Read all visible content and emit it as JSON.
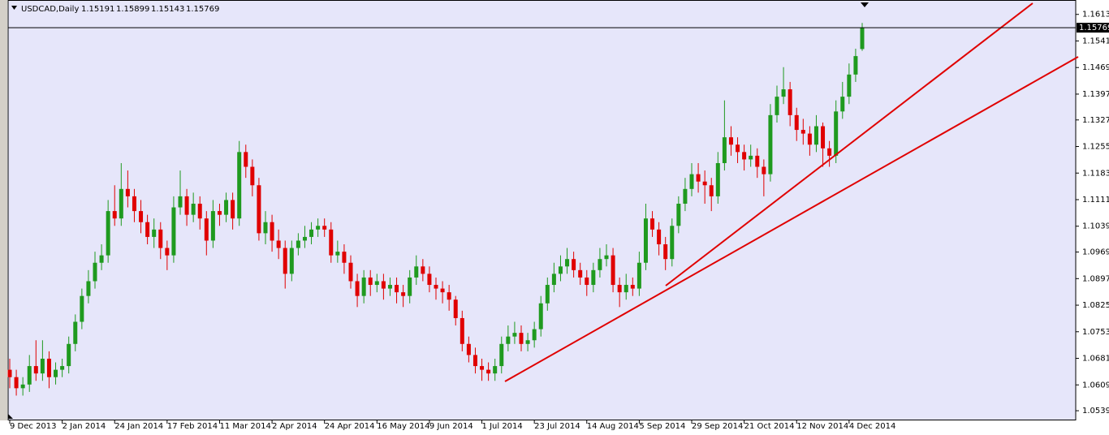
{
  "chart_data": {
    "type": "candlestick",
    "title": "USDCAD,Daily",
    "up_color": "#1f9a1f",
    "down_color": "#e00000",
    "ylim": [
      1.0526,
      1.1652
    ],
    "yticks": [
      {
        "value": 1.1613,
        "label": "1.16130"
      },
      {
        "value": 1.1541,
        "label": "1.15410"
      },
      {
        "value": 1.1469,
        "label": "1.14690"
      },
      {
        "value": 1.1397,
        "label": "1.13970"
      },
      {
        "value": 1.1327,
        "label": "1.13270"
      },
      {
        "value": 1.1255,
        "label": "1.12550"
      },
      {
        "value": 1.1183,
        "label": "1.11830"
      },
      {
        "value": 1.1111,
        "label": "1.11110"
      },
      {
        "value": 1.1039,
        "label": "1.10390"
      },
      {
        "value": 1.0969,
        "label": "1.09690"
      },
      {
        "value": 1.0897,
        "label": "1.08970"
      },
      {
        "value": 1.0825,
        "label": "1.08250"
      },
      {
        "value": 1.0753,
        "label": "1.07530"
      },
      {
        "value": 1.0681,
        "label": "1.06810"
      },
      {
        "value": 1.0609,
        "label": "1.06090"
      },
      {
        "value": 1.0539,
        "label": "1.05390"
      }
    ],
    "categories": [
      "9 Dec 2013",
      null,
      null,
      null,
      null,
      null,
      null,
      null,
      "2 Jan 2014",
      null,
      null,
      null,
      null,
      null,
      null,
      null,
      "24 Jan 2014",
      null,
      null,
      null,
      null,
      null,
      null,
      null,
      "17 Feb 2014",
      null,
      null,
      null,
      null,
      null,
      null,
      null,
      "11 Mar 2014",
      null,
      null,
      null,
      null,
      null,
      null,
      null,
      "2 Apr 2014",
      null,
      null,
      null,
      null,
      null,
      null,
      null,
      "24 Apr 2014",
      null,
      null,
      null,
      null,
      null,
      null,
      null,
      "16 May 2014",
      null,
      null,
      null,
      null,
      null,
      null,
      null,
      "9 Jun 2014",
      null,
      null,
      null,
      null,
      null,
      null,
      null,
      "1 Jul 2014",
      null,
      null,
      null,
      null,
      null,
      null,
      null,
      "23 Jul 2014",
      null,
      null,
      null,
      null,
      null,
      null,
      null,
      "14 Aug 2014",
      null,
      null,
      null,
      null,
      null,
      null,
      null,
      "5 Sep 2014",
      null,
      null,
      null,
      null,
      null,
      null,
      null,
      "29 Sep 2014",
      null,
      null,
      null,
      null,
      null,
      null,
      null,
      "21 Oct 2014",
      null,
      null,
      null,
      null,
      null,
      null,
      null,
      "12 Nov 2014",
      null,
      null,
      null,
      null,
      null,
      null,
      null,
      "4 Dec 2014",
      null,
      null
    ],
    "ohlc": [
      [
        1.065,
        1.068,
        1.06,
        1.063
      ],
      [
        1.063,
        1.065,
        1.058,
        1.06
      ],
      [
        1.06,
        1.063,
        1.058,
        1.061
      ],
      [
        1.061,
        1.069,
        1.059,
        1.066
      ],
      [
        1.066,
        1.073,
        1.062,
        1.064
      ],
      [
        1.064,
        1.073,
        1.062,
        1.068
      ],
      [
        1.068,
        1.07,
        1.06,
        1.063
      ],
      [
        1.063,
        1.067,
        1.061,
        1.065
      ],
      [
        1.065,
        1.068,
        1.063,
        1.066
      ],
      [
        1.066,
        1.074,
        1.064,
        1.072
      ],
      [
        1.072,
        1.08,
        1.07,
        1.078
      ],
      [
        1.078,
        1.087,
        1.076,
        1.085
      ],
      [
        1.085,
        1.092,
        1.083,
        1.089
      ],
      [
        1.089,
        1.097,
        1.087,
        1.094
      ],
      [
        1.094,
        1.099,
        1.092,
        1.096
      ],
      [
        1.096,
        1.111,
        1.094,
        1.108
      ],
      [
        1.108,
        1.115,
        1.104,
        1.106
      ],
      [
        1.106,
        1.121,
        1.104,
        1.114
      ],
      [
        1.114,
        1.119,
        1.109,
        1.112
      ],
      [
        1.112,
        1.114,
        1.105,
        1.108
      ],
      [
        1.108,
        1.111,
        1.102,
        1.105
      ],
      [
        1.105,
        1.107,
        1.099,
        1.101
      ],
      [
        1.101,
        1.106,
        1.098,
        1.103
      ],
      [
        1.103,
        1.105,
        1.095,
        1.098
      ],
      [
        1.098,
        1.1,
        1.092,
        1.096
      ],
      [
        1.096,
        1.112,
        1.094,
        1.109
      ],
      [
        1.109,
        1.119,
        1.107,
        1.112
      ],
      [
        1.112,
        1.114,
        1.104,
        1.107
      ],
      [
        1.107,
        1.113,
        1.105,
        1.11
      ],
      [
        1.11,
        1.112,
        1.103,
        1.106
      ],
      [
        1.106,
        1.108,
        1.096,
        1.1
      ],
      [
        1.1,
        1.111,
        1.098,
        1.108
      ],
      [
        1.108,
        1.11,
        1.104,
        1.107
      ],
      [
        1.107,
        1.113,
        1.105,
        1.111
      ],
      [
        1.111,
        1.113,
        1.103,
        1.106
      ],
      [
        1.106,
        1.127,
        1.104,
        1.124
      ],
      [
        1.124,
        1.126,
        1.117,
        1.12
      ],
      [
        1.12,
        1.122,
        1.112,
        1.115
      ],
      [
        1.115,
        1.117,
        1.1,
        1.102
      ],
      [
        1.102,
        1.108,
        1.099,
        1.105
      ],
      [
        1.105,
        1.107,
        1.097,
        1.1
      ],
      [
        1.1,
        1.103,
        1.095,
        1.098
      ],
      [
        1.098,
        1.1,
        1.087,
        1.091
      ],
      [
        1.091,
        1.1,
        1.089,
        1.098
      ],
      [
        1.098,
        1.102,
        1.096,
        1.1
      ],
      [
        1.1,
        1.104,
        1.098,
        1.101
      ],
      [
        1.101,
        1.105,
        1.099,
        1.103
      ],
      [
        1.103,
        1.106,
        1.101,
        1.104
      ],
      [
        1.104,
        1.106,
        1.101,
        1.103
      ],
      [
        1.103,
        1.105,
        1.094,
        1.096
      ],
      [
        1.096,
        1.1,
        1.094,
        1.097
      ],
      [
        1.097,
        1.099,
        1.091,
        1.094
      ],
      [
        1.094,
        1.096,
        1.087,
        1.089
      ],
      [
        1.089,
        1.091,
        1.082,
        1.085
      ],
      [
        1.085,
        1.092,
        1.083,
        1.09
      ],
      [
        1.09,
        1.092,
        1.085,
        1.088
      ],
      [
        1.088,
        1.091,
        1.086,
        1.089
      ],
      [
        1.089,
        1.091,
        1.084,
        1.087
      ],
      [
        1.087,
        1.09,
        1.085,
        1.088
      ],
      [
        1.088,
        1.09,
        1.083,
        1.086
      ],
      [
        1.086,
        1.088,
        1.082,
        1.085
      ],
      [
        1.085,
        1.092,
        1.083,
        1.09
      ],
      [
        1.09,
        1.096,
        1.088,
        1.093
      ],
      [
        1.093,
        1.095,
        1.089,
        1.091
      ],
      [
        1.091,
        1.093,
        1.086,
        1.088
      ],
      [
        1.088,
        1.09,
        1.084,
        1.087
      ],
      [
        1.087,
        1.089,
        1.083,
        1.086
      ],
      [
        1.086,
        1.088,
        1.081,
        1.084
      ],
      [
        1.084,
        1.085,
        1.077,
        1.079
      ],
      [
        1.079,
        1.081,
        1.07,
        1.072
      ],
      [
        1.072,
        1.074,
        1.067,
        1.069
      ],
      [
        1.069,
        1.071,
        1.064,
        1.066
      ],
      [
        1.066,
        1.068,
        1.062,
        1.065
      ],
      [
        1.065,
        1.067,
        1.062,
        1.064
      ],
      [
        1.064,
        1.068,
        1.062,
        1.066
      ],
      [
        1.066,
        1.074,
        1.064,
        1.072
      ],
      [
        1.072,
        1.077,
        1.07,
        1.074
      ],
      [
        1.074,
        1.078,
        1.072,
        1.075
      ],
      [
        1.075,
        1.077,
        1.07,
        1.072
      ],
      [
        1.072,
        1.075,
        1.07,
        1.073
      ],
      [
        1.073,
        1.078,
        1.071,
        1.076
      ],
      [
        1.076,
        1.085,
        1.074,
        1.083
      ],
      [
        1.083,
        1.09,
        1.081,
        1.088
      ],
      [
        1.088,
        1.094,
        1.086,
        1.091
      ],
      [
        1.091,
        1.096,
        1.089,
        1.093
      ],
      [
        1.093,
        1.098,
        1.091,
        1.095
      ],
      [
        1.095,
        1.097,
        1.09,
        1.092
      ],
      [
        1.092,
        1.094,
        1.088,
        1.09
      ],
      [
        1.09,
        1.092,
        1.085,
        1.088
      ],
      [
        1.088,
        1.094,
        1.086,
        1.092
      ],
      [
        1.092,
        1.098,
        1.09,
        1.095
      ],
      [
        1.095,
        1.099,
        1.093,
        1.096
      ],
      [
        1.096,
        1.098,
        1.086,
        1.088
      ],
      [
        1.088,
        1.09,
        1.082,
        1.086
      ],
      [
        1.086,
        1.091,
        1.084,
        1.088
      ],
      [
        1.088,
        1.09,
        1.085,
        1.087
      ],
      [
        1.087,
        1.097,
        1.085,
        1.094
      ],
      [
        1.094,
        1.11,
        1.092,
        1.106
      ],
      [
        1.106,
        1.108,
        1.101,
        1.103
      ],
      [
        1.103,
        1.105,
        1.096,
        1.099
      ],
      [
        1.099,
        1.101,
        1.092,
        1.095
      ],
      [
        1.095,
        1.106,
        1.093,
        1.104
      ],
      [
        1.104,
        1.112,
        1.102,
        1.11
      ],
      [
        1.11,
        1.117,
        1.108,
        1.114
      ],
      [
        1.114,
        1.121,
        1.112,
        1.118
      ],
      [
        1.118,
        1.121,
        1.113,
        1.116
      ],
      [
        1.116,
        1.119,
        1.11,
        1.115
      ],
      [
        1.115,
        1.117,
        1.108,
        1.112
      ],
      [
        1.112,
        1.124,
        1.11,
        1.121
      ],
      [
        1.121,
        1.138,
        1.119,
        1.128
      ],
      [
        1.128,
        1.131,
        1.123,
        1.126
      ],
      [
        1.126,
        1.128,
        1.121,
        1.124
      ],
      [
        1.124,
        1.126,
        1.119,
        1.122
      ],
      [
        1.122,
        1.126,
        1.12,
        1.123
      ],
      [
        1.123,
        1.125,
        1.117,
        1.12
      ],
      [
        1.12,
        1.122,
        1.112,
        1.118
      ],
      [
        1.118,
        1.137,
        1.116,
        1.134
      ],
      [
        1.134,
        1.142,
        1.132,
        1.139
      ],
      [
        1.139,
        1.147,
        1.137,
        1.141
      ],
      [
        1.141,
        1.143,
        1.131,
        1.134
      ],
      [
        1.134,
        1.136,
        1.127,
        1.13
      ],
      [
        1.13,
        1.133,
        1.126,
        1.129
      ],
      [
        1.129,
        1.131,
        1.123,
        1.126
      ],
      [
        1.126,
        1.134,
        1.124,
        1.131
      ],
      [
        1.131,
        1.132,
        1.12,
        1.125
      ],
      [
        1.125,
        1.127,
        1.12,
        1.123
      ],
      [
        1.123,
        1.138,
        1.121,
        1.135
      ],
      [
        1.135,
        1.143,
        1.133,
        1.139
      ],
      [
        1.139,
        1.148,
        1.137,
        1.145
      ],
      [
        1.145,
        1.152,
        1.143,
        1.15
      ],
      [
        1.15191,
        1.15899,
        1.15143,
        1.15769
      ]
    ]
  }
}
